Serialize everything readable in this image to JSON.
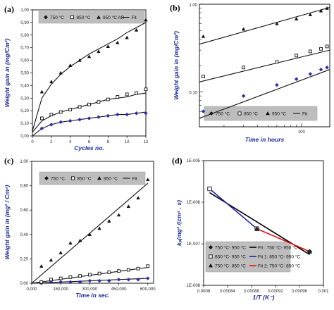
{
  "chart_data": [
    {
      "panel": "(a)",
      "type": "scatter",
      "xlabel": "Cycles no.",
      "ylabel": "Weight gain in (mg/Cm²)",
      "xlim": [
        0,
        12
      ],
      "ylim": [
        0,
        1.0
      ],
      "xticks": [
        "0",
        "2",
        "4",
        "6",
        "8",
        "10",
        "12"
      ],
      "yticks": [
        "0,00",
        "0,10",
        "0,20",
        "0,30",
        "0,40",
        "0,50",
        "0,60",
        "0,70",
        "0,80",
        "0,90",
        "1,00"
      ],
      "legend": [
        "750 °C",
        "850 °C",
        "950 °C AR",
        "Fit"
      ],
      "legend_placement": "top",
      "series": [
        {
          "name": "750 °C",
          "marker": "diamond",
          "x": [
            1,
            2,
            3,
            4,
            5,
            6,
            7,
            8,
            9,
            10,
            11,
            12
          ],
          "y": [
            0.06,
            0.09,
            0.11,
            0.12,
            0.13,
            0.14,
            0.15,
            0.16,
            0.17,
            0.17,
            0.18,
            0.18
          ]
        },
        {
          "name": "850 °C",
          "marker": "square",
          "x": [
            1,
            2,
            3,
            4,
            5,
            6,
            7,
            8,
            9,
            10,
            11,
            12
          ],
          "y": [
            0.14,
            0.17,
            0.19,
            0.21,
            0.23,
            0.25,
            0.27,
            0.29,
            0.31,
            0.33,
            0.34,
            0.37
          ]
        },
        {
          "name": "950 °C AR",
          "marker": "triangle",
          "x": [
            1,
            2,
            3,
            4,
            5,
            6,
            7,
            8,
            9,
            10,
            11,
            12
          ],
          "y": [
            0.35,
            0.43,
            0.5,
            0.56,
            0.6,
            0.63,
            0.67,
            0.71,
            0.74,
            0.78,
            0.84,
            0.92
          ]
        }
      ],
      "fits": [
        {
          "series": "750 °C",
          "x": [
            0,
            1,
            2,
            3,
            4,
            5,
            6,
            7,
            8,
            9,
            10,
            11,
            12
          ],
          "y": [
            0,
            0.06,
            0.09,
            0.11,
            0.12,
            0.13,
            0.14,
            0.15,
            0.16,
            0.17,
            0.17,
            0.18,
            0.19
          ]
        },
        {
          "series": "850 °C",
          "x": [
            0,
            1,
            2,
            3,
            4,
            5,
            6,
            7,
            8,
            9,
            10,
            11,
            12
          ],
          "y": [
            0.03,
            0.12,
            0.16,
            0.19,
            0.21,
            0.23,
            0.25,
            0.27,
            0.29,
            0.3,
            0.31,
            0.33,
            0.34
          ]
        },
        {
          "series": "950 °C AR",
          "x": [
            0,
            1,
            2,
            3,
            4,
            5,
            6,
            7,
            8,
            9,
            10,
            11,
            12
          ],
          "y": [
            0.04,
            0.3,
            0.41,
            0.49,
            0.55,
            0.6,
            0.65,
            0.69,
            0.73,
            0.77,
            0.82,
            0.86,
            0.9
          ]
        }
      ]
    },
    {
      "panel": "(b)",
      "type": "scatter",
      "log_x": true,
      "log_y": true,
      "xlabel": "Time in hours",
      "ylabel": "Weight gain in (mg/Cm²)",
      "xlim": [
        12,
        180
      ],
      "ylim": [
        0.04,
        1.0
      ],
      "xticks": [
        "100"
      ],
      "yticks": [
        "1.00",
        "0.10"
      ],
      "legend": [
        "750 °C",
        "850 °C",
        "950 °C",
        "Fit"
      ],
      "legend_placement": "bottom",
      "series": [
        {
          "name": "750 °C",
          "marker": "diamond",
          "x": [
            13,
            30,
            60,
            90,
            120,
            150,
            170
          ],
          "y": [
            0.06,
            0.09,
            0.12,
            0.14,
            0.16,
            0.18,
            0.19
          ]
        },
        {
          "name": "850 °C",
          "marker": "square",
          "x": [
            13,
            30,
            60,
            90,
            120,
            150,
            170
          ],
          "y": [
            0.15,
            0.19,
            0.22,
            0.26,
            0.29,
            0.31,
            0.33
          ]
        },
        {
          "name": "950 °C",
          "marker": "triangle",
          "x": [
            13,
            30,
            60,
            90,
            120,
            150,
            170
          ],
          "y": [
            0.43,
            0.52,
            0.6,
            0.68,
            0.76,
            0.84,
            0.9
          ]
        }
      ],
      "fits": [
        {
          "series": "750 °C",
          "x": [
            12,
            180
          ],
          "y": [
            0.05,
            0.18
          ]
        },
        {
          "series": "850 °C",
          "x": [
            12,
            180
          ],
          "y": [
            0.13,
            0.3
          ]
        },
        {
          "series": "950 °C",
          "x": [
            12,
            180
          ],
          "y": [
            0.35,
            0.92
          ]
        }
      ]
    },
    {
      "panel": "(c)",
      "type": "scatter",
      "xlabel": "Time in sec.",
      "ylabel": "Weight gain in (mg² / Cm⁴)",
      "xlim": [
        0,
        630000
      ],
      "ylim": [
        0,
        1.0
      ],
      "xticks": [
        "0,000",
        "150,000",
        "300,000",
        "450,000",
        "600,000"
      ],
      "yticks": [
        "0,00",
        "0,20",
        "0,40",
        "0,60",
        "0,80",
        "1,00"
      ],
      "legend": [
        "750 °C",
        "850 °C",
        "950 °C",
        "Fit"
      ],
      "legend_placement": "top",
      "series": [
        {
          "name": "750 °C",
          "marker": "diamond",
          "x": [
            50000,
            100000,
            150000,
            200000,
            250000,
            300000,
            350000,
            400000,
            450000,
            500000,
            550000,
            600000
          ],
          "y": [
            0.0,
            0.01,
            0.01,
            0.01,
            0.01,
            0.02,
            0.02,
            0.02,
            0.03,
            0.03,
            0.03,
            0.04
          ]
        },
        {
          "name": "850 °C",
          "marker": "square",
          "x": [
            50000,
            100000,
            150000,
            200000,
            250000,
            300000,
            350000,
            400000,
            450000,
            500000,
            550000,
            600000
          ],
          "y": [
            0.01,
            0.03,
            0.04,
            0.05,
            0.06,
            0.07,
            0.08,
            0.09,
            0.1,
            0.11,
            0.12,
            0.14
          ]
        },
        {
          "name": "950 °C",
          "marker": "triangle",
          "x": [
            50000,
            100000,
            150000,
            200000,
            250000,
            300000,
            350000,
            400000,
            450000,
            500000,
            550000,
            600000
          ],
          "y": [
            0.14,
            0.19,
            0.25,
            0.33,
            0.35,
            0.4,
            0.45,
            0.51,
            0.56,
            0.63,
            0.7,
            0.85
          ]
        }
      ],
      "fits": [
        {
          "series": "750 °C",
          "x": [
            0,
            600000
          ],
          "y": [
            0,
            0.04
          ]
        },
        {
          "series": "850 °C",
          "x": [
            0,
            600000
          ],
          "y": [
            0,
            0.13
          ]
        },
        {
          "series": "950 °C",
          "x": [
            0,
            600000
          ],
          "y": [
            0,
            0.82
          ]
        }
      ]
    },
    {
      "panel": "(d)",
      "type": "scatter",
      "log_y": true,
      "xlabel": "1/T (K⁻)",
      "ylabel": "kₚ(mg² /(cm⁴ . s)",
      "xlim": [
        0.0008,
        0.001
      ],
      "ylim": [
        1e-08,
        1e-05
      ],
      "xticks": [
        "0.0008",
        "0.00084",
        "0.00088",
        "0.00092",
        "0.00096",
        "0.001"
      ],
      "yticks": [
        "1E-005",
        "1E-006",
        "1E-007",
        "1E-008"
      ],
      "legend": [
        "750 °C- 950 °C",
        "850 °C- 950 °C",
        "750 °C- 850 °C",
        "Fit : 750 °C- 950 °C",
        "Fit 1: 850 °C- 950 °C",
        "Fit 2: 750 °C- 850 °C"
      ],
      "legend_placement": "bottom",
      "series": [
        {
          "name": "750 °C- 950 °C",
          "marker": "diamond",
          "x": [
            0.00081,
            0.000889,
            0.000977
          ],
          "y": [
            2.1e-06,
            2.3e-07,
            6.5e-08
          ]
        },
        {
          "name": "850 °C- 950 °C",
          "marker": "square",
          "x": [
            0.00081,
            0.000889
          ],
          "y": [
            2.1e-06,
            2.3e-07
          ]
        },
        {
          "name": "750 °C- 850 °C",
          "marker": "triangle",
          "x": [
            0.000889,
            0.000977
          ],
          "y": [
            2.3e-07,
            6.5e-08
          ]
        }
      ],
      "fits": [
        {
          "series": "Fit : 750 °C- 950 °C",
          "color": "#000000",
          "x": [
            0.00081,
            0.000977
          ],
          "y": [
            1.7e-06,
            5.5e-08
          ]
        },
        {
          "series": "Fit 1: 850 °C- 950 °C",
          "color": "#1f1fb0",
          "x": [
            0.00081,
            0.000889
          ],
          "y": [
            2.1e-06,
            2.3e-07
          ]
        },
        {
          "series": "Fit 2: 750 °C- 850 °C",
          "color": "#e01010",
          "x": [
            0.000889,
            0.000977
          ],
          "y": [
            2.3e-07,
            6.5e-08
          ]
        }
      ]
    }
  ]
}
